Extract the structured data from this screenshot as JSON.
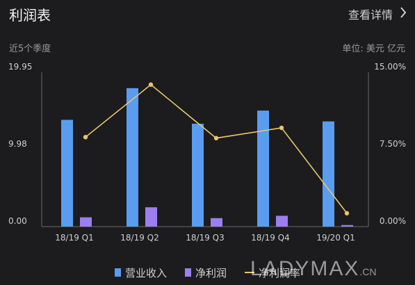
{
  "header": {
    "title": "利润表",
    "detail_label": "查看详情",
    "period_label": "近5个季度",
    "unit_label": "单位: 美元 亿元"
  },
  "chart_data": {
    "type": "bar",
    "categories": [
      "18/19 Q1",
      "18/19 Q2",
      "18/19 Q3",
      "18/19 Q4",
      "19/20 Q1"
    ],
    "series": [
      {
        "name": "营业收入",
        "kind": "bar",
        "axis": "left",
        "color": "#5a9cf0",
        "values": [
          13.8,
          17.9,
          13.3,
          15.0,
          13.6
        ]
      },
      {
        "name": "净利润",
        "kind": "bar",
        "axis": "left",
        "color": "#9b7ff0",
        "values": [
          1.2,
          2.5,
          1.1,
          1.4,
          0.2
        ]
      },
      {
        "name": "净利润率",
        "kind": "line",
        "axis": "right",
        "color": "#e8c56c",
        "values": [
          8.7,
          13.8,
          8.6,
          9.6,
          1.3
        ]
      }
    ],
    "left_axis": {
      "ticks": [
        "0.00",
        "9.98",
        "19.95"
      ],
      "tick_values": [
        0,
        9.98,
        19.95
      ],
      "range": [
        0,
        19.95
      ]
    },
    "right_axis": {
      "ticks": [
        "0.00%",
        "7.50%",
        "15.00%"
      ],
      "tick_values": [
        0,
        7.5,
        15.0
      ],
      "range": [
        0,
        15.0
      ]
    },
    "grid": false,
    "legend_position": "bottom"
  },
  "watermark": {
    "text": "LADYMAX",
    "suffix": ".CN"
  },
  "colors": {
    "background": "#1c1c1e",
    "axis": "#6a6a6a"
  },
  "icons": {
    "detail": "chevron-right-icon"
  }
}
